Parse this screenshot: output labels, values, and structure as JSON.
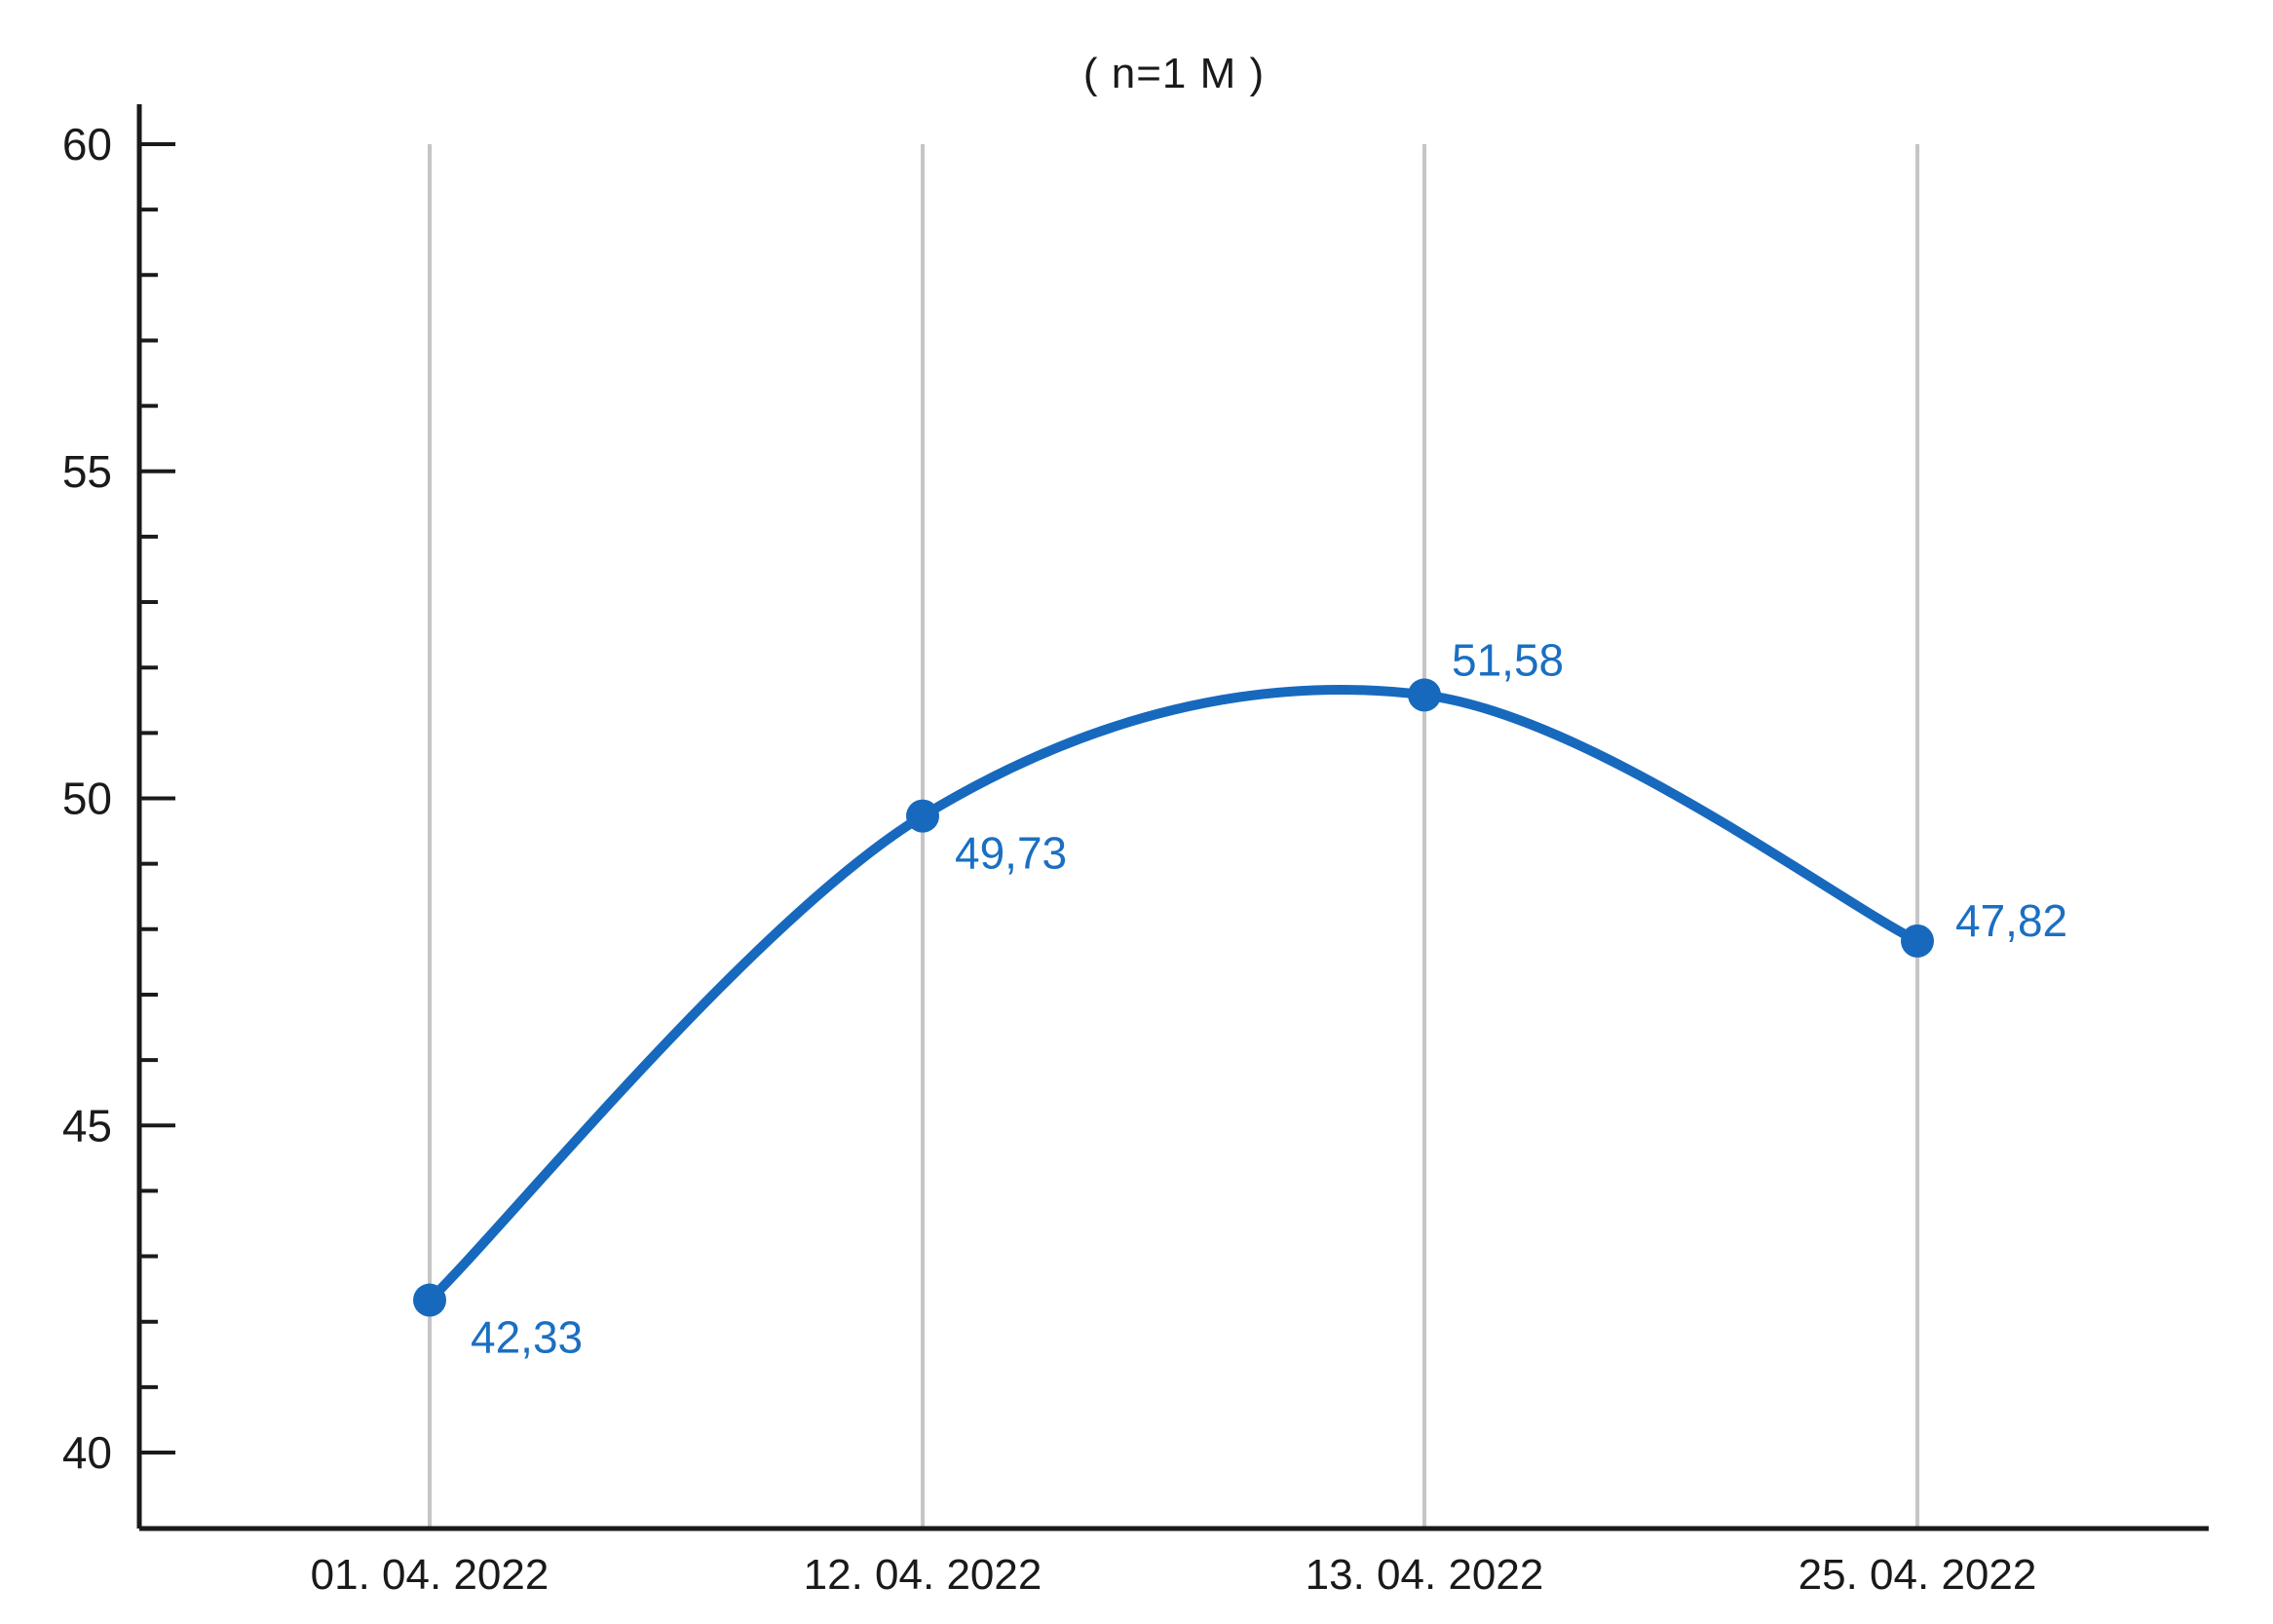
{
  "chart_data": {
    "type": "line",
    "title": "( n=1 M )",
    "categories": [
      "01. 04. 2022",
      "12. 04. 2022",
      "13. 04. 2022",
      "25. 04. 2022"
    ],
    "series": [
      {
        "name": "value",
        "values": [
          42.33,
          49.73,
          51.58,
          47.82
        ],
        "point_labels": [
          "42,33",
          "49,73",
          "51,58",
          "47,82"
        ]
      }
    ],
    "xlabel": "",
    "ylabel": "",
    "ylim": [
      40,
      60
    ],
    "y_major_ticks": [
      40,
      45,
      50,
      55,
      60
    ],
    "y_minor_tick_step": 1,
    "grid": "vertical-only",
    "legend": "none",
    "smooth_curve": true,
    "colors": {
      "line": "#1769be",
      "marker": "#1769be",
      "point_label_text": "#1a6fc2",
      "gridline": "#c5c5c8",
      "axis": "#1a1a1a",
      "background": "#ffffff"
    }
  }
}
